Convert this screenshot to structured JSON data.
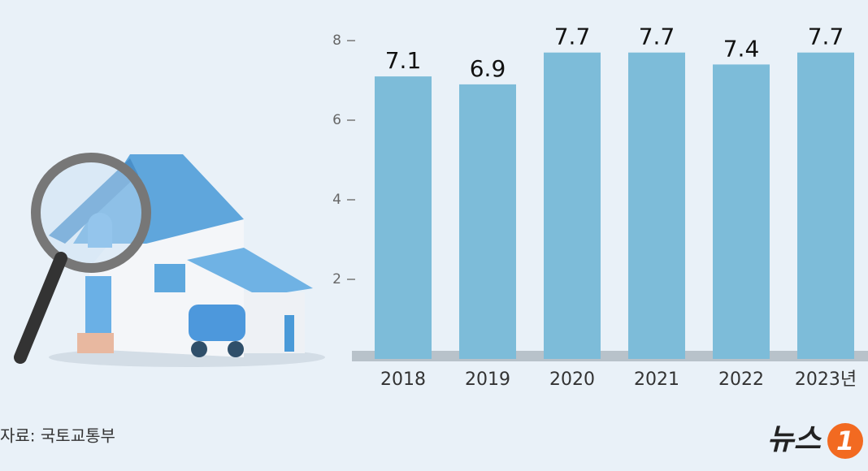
{
  "chart_data": {
    "type": "bar",
    "categories": [
      "2018",
      "2019",
      "2020",
      "2021",
      "2022",
      "2023년"
    ],
    "values": [
      7.1,
      6.9,
      7.7,
      7.7,
      7.4,
      7.7
    ],
    "color": "#7dbcd9",
    "ylim": [
      0,
      8
    ],
    "yticks": [
      2,
      4,
      6,
      8
    ],
    "grid": false,
    "source": "자료: 국토교통부",
    "logo": {
      "text": "뉴스",
      "mark": "1"
    }
  }
}
